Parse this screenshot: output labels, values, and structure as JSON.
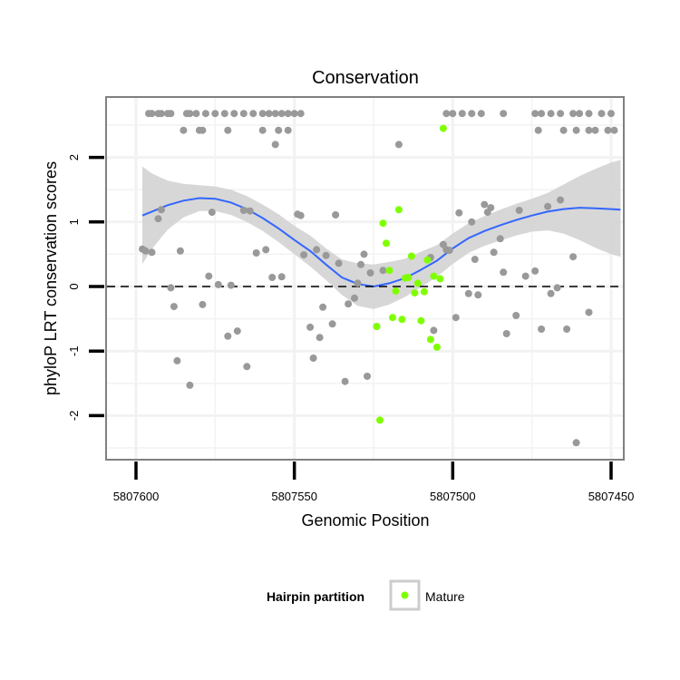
{
  "chart_data": {
    "type": "scatter",
    "title": "Conservation",
    "xlabel": "Genomic Position",
    "ylabel": "phyloP LRT conservation scores",
    "x_reversed": true,
    "xlim": [
      5807608,
      5807447
    ],
    "ylim": [
      -2.6,
      2.95
    ],
    "x_ticks": [
      5807600,
      5807550,
      5807500,
      5807450
    ],
    "x_tick_labels": [
      "5807600",
      "5807550",
      "5807500",
      "5807450"
    ],
    "y_ticks": [
      -2,
      -1,
      0,
      1,
      2
    ],
    "y_tick_labels": [
      "-2",
      "-1",
      "0",
      "1",
      "2"
    ],
    "grid": true,
    "reference_line": {
      "y": 0,
      "style": "dashed"
    },
    "legend": {
      "position": "bottom",
      "title": "Hairpin partition",
      "entries": [
        "Mature"
      ]
    },
    "colors": {
      "other": "#999999",
      "mature": "#7fff00",
      "smooth": "#3366ff",
      "ribbon": "#d3d3d3"
    },
    "series": [
      {
        "name": "",
        "color": "#999999",
        "points": [
          [
            5807598,
            0.58
          ],
          [
            5807597,
            0.55
          ],
          [
            5807595,
            0.53
          ],
          [
            5807593,
            1.05
          ],
          [
            5807592,
            1.19
          ],
          [
            5807589,
            -0.02
          ],
          [
            5807588,
            -0.31
          ],
          [
            5807587,
            -1.15
          ],
          [
            5807586,
            0.55
          ],
          [
            5807583,
            -1.53
          ],
          [
            5807579,
            -0.28
          ],
          [
            5807577,
            0.16
          ],
          [
            5807576,
            1.15
          ],
          [
            5807574,
            0.03
          ],
          [
            5807571,
            -0.77
          ],
          [
            5807570,
            0.02
          ],
          [
            5807568,
            -0.69
          ],
          [
            5807566,
            1.18
          ],
          [
            5807565,
            -1.24
          ],
          [
            5807564,
            1.17
          ],
          [
            5807562,
            0.52
          ],
          [
            5807559,
            0.57
          ],
          [
            5807557,
            0.14
          ],
          [
            5807554,
            0.15
          ],
          [
            5807549,
            1.12
          ],
          [
            5807548,
            1.1
          ],
          [
            5807547,
            0.49
          ],
          [
            5807545,
            -0.63
          ],
          [
            5807544,
            -1.11
          ],
          [
            5807543,
            0.57
          ],
          [
            5807542,
            -0.79
          ],
          [
            5807541,
            -0.32
          ],
          [
            5807540,
            0.48
          ],
          [
            5807538,
            -0.58
          ],
          [
            5807537,
            1.11
          ],
          [
            5807536,
            0.36
          ],
          [
            5807534,
            -1.47
          ],
          [
            5807533,
            -0.27
          ],
          [
            5807531,
            -0.18
          ],
          [
            5807530,
            0.05
          ],
          [
            5807529,
            0.34
          ],
          [
            5807528,
            0.5
          ],
          [
            5807527,
            -1.39
          ],
          [
            5807526,
            0.21
          ],
          [
            5807524,
            -0.62
          ],
          [
            5807522,
            0.25
          ],
          [
            5807507,
            0.45
          ],
          [
            5807506,
            -0.68
          ],
          [
            5807503,
            0.65
          ],
          [
            5807502,
            0.57
          ],
          [
            5807501,
            0.56
          ],
          [
            5807499,
            -0.48
          ],
          [
            5807498,
            1.14
          ],
          [
            5807495,
            -0.11
          ],
          [
            5807494,
            1.0
          ],
          [
            5807493,
            0.42
          ],
          [
            5807492,
            -0.13
          ],
          [
            5807490,
            1.27
          ],
          [
            5807489,
            1.15
          ],
          [
            5807488,
            1.22
          ],
          [
            5807487,
            0.53
          ],
          [
            5807485,
            0.74
          ],
          [
            5807484,
            0.22
          ],
          [
            5807483,
            -0.73
          ],
          [
            5807480,
            -0.45
          ],
          [
            5807479,
            1.18
          ],
          [
            5807477,
            0.16
          ],
          [
            5807474,
            0.24
          ],
          [
            5807472,
            -0.66
          ],
          [
            5807470,
            1.24
          ],
          [
            5807469,
            -0.11
          ],
          [
            5807467,
            -0.02
          ],
          [
            5807466,
            1.34
          ],
          [
            5807464,
            -0.66
          ],
          [
            5807462,
            0.46
          ],
          [
            5807461,
            -2.42
          ],
          [
            5807457,
            -0.4
          ],
          [
            5807517,
            2.2
          ],
          [
            5807556,
            2.2
          ],
          [
            5807596,
            2.68
          ],
          [
            5807595,
            2.68
          ],
          [
            5807593,
            2.68
          ],
          [
            5807592,
            2.68
          ],
          [
            5807590,
            2.68
          ],
          [
            5807589,
            2.68
          ],
          [
            5807584,
            2.68
          ],
          [
            5807583,
            2.68
          ],
          [
            5807581,
            2.68
          ],
          [
            5807578,
            2.68
          ],
          [
            5807575,
            2.68
          ],
          [
            5807572,
            2.68
          ],
          [
            5807569,
            2.68
          ],
          [
            5807566,
            2.68
          ],
          [
            5807563,
            2.68
          ],
          [
            5807560,
            2.68
          ],
          [
            5807558,
            2.68
          ],
          [
            5807556,
            2.68
          ],
          [
            5807554,
            2.68
          ],
          [
            5807552,
            2.68
          ],
          [
            5807550,
            2.68
          ],
          [
            5807548,
            2.68
          ],
          [
            5807502,
            2.68
          ],
          [
            5807500,
            2.68
          ],
          [
            5807497,
            2.68
          ],
          [
            5807494,
            2.68
          ],
          [
            5807491,
            2.68
          ],
          [
            5807484,
            2.68
          ],
          [
            5807474,
            2.68
          ],
          [
            5807472,
            2.68
          ],
          [
            5807469,
            2.68
          ],
          [
            5807466,
            2.68
          ],
          [
            5807462,
            2.68
          ],
          [
            5807460,
            2.68
          ],
          [
            5807457,
            2.68
          ],
          [
            5807453,
            2.68
          ],
          [
            5807450,
            2.68
          ],
          [
            5807585,
            2.42
          ],
          [
            5807580,
            2.42
          ],
          [
            5807579,
            2.42
          ],
          [
            5807571,
            2.42
          ],
          [
            5807560,
            2.42
          ],
          [
            5807555,
            2.42
          ],
          [
            5807552,
            2.42
          ],
          [
            5807473,
            2.42
          ],
          [
            5807465,
            2.42
          ],
          [
            5807461,
            2.42
          ],
          [
            5807457,
            2.42
          ],
          [
            5807455,
            2.42
          ],
          [
            5807451,
            2.42
          ],
          [
            5807449,
            2.42
          ]
        ]
      },
      {
        "name": "Mature",
        "color": "#7fff00",
        "points": [
          [
            5807524,
            -0.62
          ],
          [
            5807523,
            -2.07
          ],
          [
            5807522,
            0.98
          ],
          [
            5807521,
            0.67
          ],
          [
            5807520,
            0.25
          ],
          [
            5807519,
            -0.48
          ],
          [
            5807518,
            -0.07
          ],
          [
            5807517,
            1.19
          ],
          [
            5807516,
            -0.51
          ],
          [
            5807515,
            0.13
          ],
          [
            5807514,
            0.14
          ],
          [
            5807513,
            0.47
          ],
          [
            5807512,
            -0.1
          ],
          [
            5807511,
            0.05
          ],
          [
            5807510,
            -0.53
          ],
          [
            5807509,
            -0.08
          ],
          [
            5807508,
            0.41
          ],
          [
            5807507,
            -0.82
          ],
          [
            5807506,
            0.16
          ],
          [
            5807505,
            -0.94
          ],
          [
            5807504,
            0.12
          ],
          [
            5807503,
            2.45
          ]
        ]
      }
    ],
    "smooth": {
      "x": [
        5807598,
        5807595,
        5807590,
        5807585,
        5807580,
        5807575,
        5807570,
        5807565,
        5807560,
        5807555,
        5807550,
        5807545,
        5807540,
        5807535,
        5807530,
        5807525,
        5807520,
        5807515,
        5807510,
        5807505,
        5807500,
        5807495,
        5807490,
        5807485,
        5807480,
        5807475,
        5807470,
        5807465,
        5807460,
        5807455,
        5807450,
        5807447
      ],
      "y": [
        1.1,
        1.16,
        1.26,
        1.33,
        1.37,
        1.36,
        1.3,
        1.2,
        1.06,
        0.9,
        0.72,
        0.55,
        0.34,
        0.14,
        0.04,
        0.0,
        0.05,
        0.13,
        0.26,
        0.4,
        0.59,
        0.75,
        0.86,
        0.95,
        1.03,
        1.1,
        1.16,
        1.2,
        1.22,
        1.21,
        1.2,
        1.19
      ],
      "ymin": [
        0.35,
        0.58,
        0.88,
        1.07,
        1.17,
        1.17,
        1.11,
        1.0,
        0.86,
        0.69,
        0.5,
        0.31,
        0.1,
        -0.13,
        -0.3,
        -0.35,
        -0.28,
        -0.16,
        -0.01,
        0.15,
        0.35,
        0.52,
        0.63,
        0.71,
        0.79,
        0.85,
        0.87,
        0.82,
        0.72,
        0.6,
        0.5,
        0.46
      ],
      "ymax": [
        1.86,
        1.75,
        1.64,
        1.59,
        1.57,
        1.55,
        1.5,
        1.4,
        1.27,
        1.12,
        0.94,
        0.79,
        0.59,
        0.42,
        0.36,
        0.34,
        0.38,
        0.43,
        0.54,
        0.64,
        0.82,
        0.98,
        1.09,
        1.19,
        1.28,
        1.36,
        1.45,
        1.58,
        1.71,
        1.82,
        1.92,
        1.96
      ]
    }
  }
}
